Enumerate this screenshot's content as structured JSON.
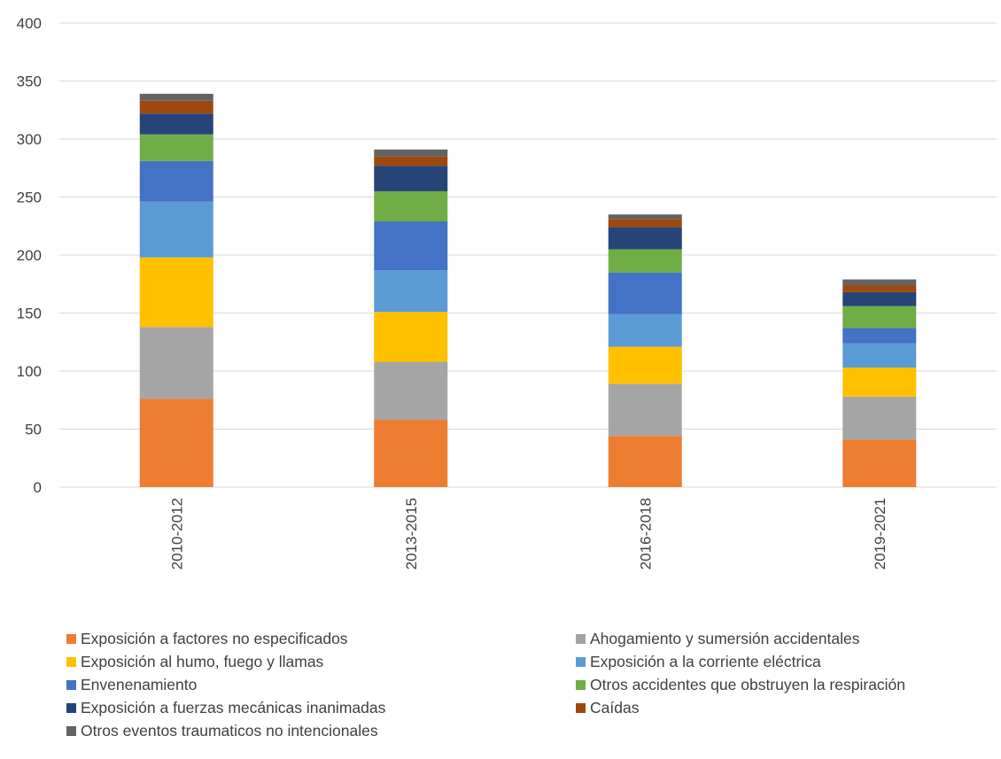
{
  "chart_data": {
    "type": "bar",
    "stacked": true,
    "title": "",
    "xlabel": "",
    "ylabel": "",
    "ylim": [
      0,
      400
    ],
    "yticks": [
      0,
      50,
      100,
      150,
      200,
      250,
      300,
      350,
      400
    ],
    "grid": true,
    "legend_position": "bottom",
    "categories": [
      "2010-2012",
      "2013-2015",
      "2016-2018",
      "2019-2021"
    ],
    "series": [
      {
        "name": "Exposición a factores no especificados",
        "color": "#ED7D31",
        "values": [
          76,
          58,
          44,
          41
        ]
      },
      {
        "name": "Ahogamiento y sumersión accidentales",
        "color": "#A5A5A5",
        "values": [
          62,
          50,
          45,
          37
        ]
      },
      {
        "name": "Exposición al humo, fuego y llamas",
        "color": "#FFC000",
        "values": [
          60,
          43,
          32,
          25
        ]
      },
      {
        "name": "Exposición a la corriente eléctrica",
        "color": "#5B9BD5",
        "values": [
          48,
          36,
          28,
          21
        ]
      },
      {
        "name": "Envenenamiento",
        "color": "#4472C4",
        "values": [
          35,
          42,
          36,
          13
        ]
      },
      {
        "name": "Otros accidentes que obstruyen la respiración",
        "color": "#70AD47",
        "values": [
          23,
          26,
          20,
          19
        ]
      },
      {
        "name": "Exposición a fuerzas mecánicas inanimadas",
        "color": "#264478",
        "values": [
          18,
          22,
          19,
          12
        ]
      },
      {
        "name": "Caídas",
        "color": "#9E480E",
        "values": [
          11,
          8,
          7,
          6
        ]
      },
      {
        "name": "Otros eventos traumaticos no intencionales",
        "color": "#636363",
        "values": [
          6,
          6,
          4,
          5
        ]
      }
    ]
  }
}
